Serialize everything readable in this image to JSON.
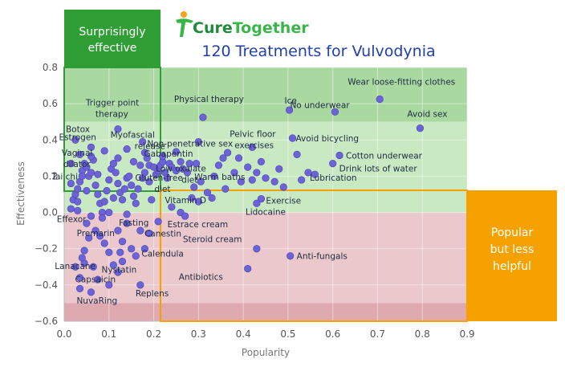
{
  "brand": {
    "cure": "Cure",
    "together": "Together",
    "cure_color": "#1e8a3a",
    "together_color": "#3ab54a"
  },
  "chart_data": {
    "type": "scatter",
    "title": "120 Treatments for Vulvodynia",
    "xlabel": "Popularity",
    "ylabel": "Effectiveness",
    "xlim": [
      0,
      0.9
    ],
    "ylim": [
      -0.6,
      0.8
    ],
    "xticks": [
      "0.0",
      "0.1",
      "0.2",
      "0.3",
      "0.4",
      "0.5",
      "0.6",
      "0.7",
      "0.8",
      "0.9"
    ],
    "yticks": [
      "0.8",
      "0.6",
      "0.4",
      "0.2",
      "0.0",
      "−0.2",
      "−0.4",
      "−0.6"
    ],
    "bands": [
      {
        "from": 0.5,
        "to": 0.8,
        "color": "#a9d9a0"
      },
      {
        "from": 0.0,
        "to": 0.5,
        "color": "#c9e9c2"
      },
      {
        "from": -0.5,
        "to": 0.0,
        "color": "#ebc8cb"
      },
      {
        "from": -0.6,
        "to": -0.5,
        "color": "#deaab0"
      }
    ],
    "annotations": {
      "surprising": {
        "text_1": "Surprisingly",
        "text_2": "effective",
        "color": "#2e9e35"
      },
      "popular": {
        "text_1": "Popular",
        "text_2": "but less",
        "text_3": "helpful",
        "color": "#f5a100"
      }
    },
    "labeled_points": [
      {
        "name": "Wear loose-fitting clothes",
        "x": 0.705,
        "y": 0.625
      },
      {
        "name": "Ice",
        "x": 0.503,
        "y": 0.565
      },
      {
        "name": "No underwear",
        "x": 0.605,
        "y": 0.555
      },
      {
        "name": "Avoid sex",
        "x": 0.795,
        "y": 0.465
      },
      {
        "name": "Physical therapy",
        "x": 0.31,
        "y": 0.525
      },
      {
        "name": "Trigger point therapy",
        "x": 0.12,
        "y": 0.46
      },
      {
        "name": "Botox",
        "x": 0.025,
        "y": 0.4
      },
      {
        "name": "Myofascial release",
        "x": 0.175,
        "y": 0.39
      },
      {
        "name": "Non-penetrative sex",
        "x": 0.3,
        "y": 0.39
      },
      {
        "name": "Avoid bicycling",
        "x": 0.51,
        "y": 0.41
      },
      {
        "name": "Estrogen",
        "x": 0.06,
        "y": 0.36
      },
      {
        "name": "Vaginal dilator",
        "x": 0.12,
        "y": 0.3
      },
      {
        "name": "Gabapentin",
        "x": 0.25,
        "y": 0.335
      },
      {
        "name": "Pelvic floor exercises",
        "x": 0.42,
        "y": 0.36
      },
      {
        "name": "Cotton underwear",
        "x": 0.615,
        "y": 0.315
      },
      {
        "name": "Low oxalate diet",
        "x": 0.28,
        "y": 0.27
      },
      {
        "name": "Drink lots of water",
        "x": 0.6,
        "y": 0.27
      },
      {
        "name": "Tai chi",
        "x": 0.04,
        "y": 0.2
      },
      {
        "name": "Gluten-free diet",
        "x": 0.18,
        "y": 0.22
      },
      {
        "name": "Lubrication",
        "x": 0.545,
        "y": 0.22
      },
      {
        "name": "Warm baths",
        "x": 0.42,
        "y": 0.18
      },
      {
        "name": "Exercise",
        "x": 0.44,
        "y": 0.075
      },
      {
        "name": "Vitamin D",
        "x": 0.3,
        "y": 0.06
      },
      {
        "name": "Lidocaine",
        "x": 0.43,
        "y": 0.05
      },
      {
        "name": "Effexor",
        "x": 0.03,
        "y": 0.01
      },
      {
        "name": "Fasting",
        "x": 0.14,
        "y": -0.01
      },
      {
        "name": "Estrace cream",
        "x": 0.27,
        "y": -0.02
      },
      {
        "name": "Premarin",
        "x": 0.055,
        "y": -0.14
      },
      {
        "name": "Canestin",
        "x": 0.19,
        "y": -0.115
      },
      {
        "name": "Calendula",
        "x": 0.18,
        "y": -0.2
      },
      {
        "name": "Steroid cream",
        "x": 0.43,
        "y": -0.2
      },
      {
        "name": "Anti-fungals",
        "x": 0.505,
        "y": -0.24
      },
      {
        "name": "Lanacane",
        "x": 0.04,
        "y": -0.25
      },
      {
        "name": "Nystatin",
        "x": 0.13,
        "y": -0.27
      },
      {
        "name": "Antibiotics",
        "x": 0.41,
        "y": -0.31
      },
      {
        "name": "Capsaicin",
        "x": 0.035,
        "y": -0.42
      },
      {
        "name": "Replens",
        "x": 0.17,
        "y": -0.4
      },
      {
        "name": "NuvaRing",
        "x": 0.06,
        "y": -0.44
      }
    ],
    "points": [
      [
        0.015,
        0.02
      ],
      [
        0.02,
        0.07
      ],
      [
        0.025,
        0.1
      ],
      [
        0.03,
        0.13
      ],
      [
        0.035,
        0.17
      ],
      [
        0.04,
        0.23
      ],
      [
        0.045,
        0.27
      ],
      [
        0.05,
        0.25
      ],
      [
        0.055,
        0.2
      ],
      [
        0.06,
        0.22
      ],
      [
        0.065,
        0.29
      ],
      [
        0.07,
        0.15
      ],
      [
        0.075,
        0.1
      ],
      [
        0.08,
        0.05
      ],
      [
        0.085,
        0.0
      ],
      [
        0.09,
        0.06
      ],
      [
        0.095,
        0.12
      ],
      [
        0.1,
        0.18
      ],
      [
        0.105,
        0.24
      ],
      [
        0.11,
        0.27
      ],
      [
        0.115,
        0.22
      ],
      [
        0.12,
        0.16
      ],
      [
        0.125,
        0.11
      ],
      [
        0.13,
        0.07
      ],
      [
        0.135,
        0.13
      ],
      [
        0.14,
        0.19
      ],
      [
        0.145,
        0.2
      ],
      [
        0.15,
        0.15
      ],
      [
        0.155,
        0.09
      ],
      [
        0.16,
        0.05
      ],
      [
        0.165,
        0.13
      ],
      [
        0.17,
        0.26
      ],
      [
        0.175,
        0.19
      ],
      [
        0.18,
        0.33
      ],
      [
        0.185,
        0.3
      ],
      [
        0.19,
        0.26
      ],
      [
        0.195,
        0.07
      ],
      [
        0.2,
        0.25
      ],
      [
        0.205,
        0.21
      ],
      [
        0.21,
        0.23
      ],
      [
        0.215,
        0.26
      ],
      [
        0.22,
        0.28
      ],
      [
        0.225,
        0.22
      ],
      [
        0.23,
        0.19
      ],
      [
        0.235,
        0.27
      ],
      [
        0.24,
        0.25
      ],
      [
        0.25,
        0.23
      ],
      [
        0.26,
        0.28
      ],
      [
        0.265,
        0.24
      ],
      [
        0.275,
        0.22
      ],
      [
        0.285,
        0.08
      ],
      [
        0.29,
        0.14
      ],
      [
        0.295,
        0.27
      ],
      [
        0.305,
        0.17
      ],
      [
        0.32,
        0.11
      ],
      [
        0.335,
        0.2
      ],
      [
        0.345,
        0.26
      ],
      [
        0.355,
        0.3
      ],
      [
        0.365,
        0.33
      ],
      [
        0.38,
        0.22
      ],
      [
        0.395,
        0.17
      ],
      [
        0.41,
        0.25
      ],
      [
        0.43,
        0.22
      ],
      [
        0.45,
        0.19
      ],
      [
        0.47,
        0.17
      ],
      [
        0.49,
        0.14
      ],
      [
        0.53,
        0.18
      ],
      [
        0.56,
        0.21
      ],
      [
        0.05,
        -0.06
      ],
      [
        0.06,
        -0.02
      ],
      [
        0.07,
        -0.1
      ],
      [
        0.08,
        -0.13
      ],
      [
        0.09,
        -0.17
      ],
      [
        0.1,
        -0.22
      ],
      [
        0.11,
        -0.29
      ],
      [
        0.12,
        -0.33
      ],
      [
        0.13,
        -0.16
      ],
      [
        0.14,
        -0.06
      ],
      [
        0.15,
        -0.2
      ],
      [
        0.16,
        -0.24
      ],
      [
        0.025,
        -0.3
      ],
      [
        0.035,
        -0.36
      ],
      [
        0.045,
        -0.28
      ],
      [
        0.075,
        -0.37
      ],
      [
        0.1,
        -0.4
      ],
      [
        0.12,
        -0.1
      ],
      [
        0.035,
        0.32
      ],
      [
        0.05,
        0.12
      ],
      [
        0.015,
        0.27
      ],
      [
        0.09,
        0.34
      ],
      [
        0.06,
        0.31
      ],
      [
        0.14,
        0.35
      ],
      [
        0.075,
        0.21
      ],
      [
        0.155,
        0.28
      ],
      [
        0.1,
        0.0
      ],
      [
        0.03,
        0.06
      ],
      [
        0.085,
        -0.03
      ],
      [
        0.045,
        -0.21
      ],
      [
        0.065,
        -0.3
      ],
      [
        0.21,
        -0.05
      ],
      [
        0.24,
        0.03
      ],
      [
        0.26,
        0.0
      ],
      [
        0.33,
        0.08
      ],
      [
        0.36,
        0.13
      ],
      [
        0.39,
        0.3
      ],
      [
        0.48,
        0.24
      ],
      [
        0.52,
        0.32
      ],
      [
        0.015,
        0.16
      ],
      [
        0.11,
        0.08
      ],
      [
        0.125,
        -0.22
      ],
      [
        0.17,
        -0.1
      ],
      [
        0.19,
        0.17
      ],
      [
        0.22,
        0.31
      ],
      [
        0.44,
        0.28
      ]
    ]
  }
}
